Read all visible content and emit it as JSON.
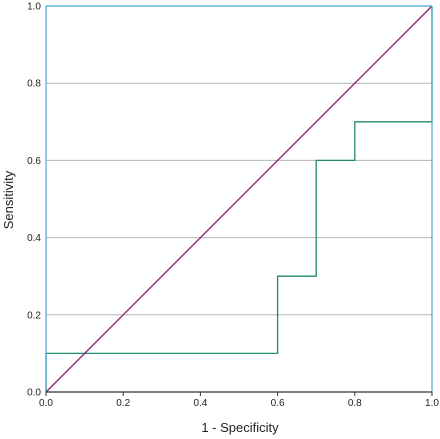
{
  "chart_data": {
    "type": "line",
    "title": "",
    "xlabel": "1 - Specificity",
    "ylabel": "Sensitivity",
    "xlim": [
      0,
      1
    ],
    "ylim": [
      0,
      1
    ],
    "x_ticks": [
      {
        "value": 0.0,
        "label": "0.0"
      },
      {
        "value": 0.2,
        "label": "0.2"
      },
      {
        "value": 0.4,
        "label": "0.4"
      },
      {
        "value": 0.6,
        "label": "0.6"
      },
      {
        "value": 0.8,
        "label": "0.8"
      },
      {
        "value": 1.0,
        "label": "1.0"
      }
    ],
    "y_ticks": [
      {
        "value": 0.0,
        "label": "0.0"
      },
      {
        "value": 0.2,
        "label": "0.2"
      },
      {
        "value": 0.4,
        "label": "0.4"
      },
      {
        "value": 0.6,
        "label": "0.6"
      },
      {
        "value": 0.8,
        "label": "0.8"
      },
      {
        "value": 1.0,
        "label": "1.0"
      }
    ],
    "grid": "horizontal",
    "series": [
      {
        "color": "#1f8a70",
        "x": [
          0.0,
          0.0,
          0.6,
          0.6,
          0.7,
          0.7,
          0.8,
          0.8,
          1.0,
          1.0
        ],
        "y": [
          0.0,
          0.1,
          0.1,
          0.3,
          0.3,
          0.6,
          0.6,
          0.7,
          0.7,
          1.0
        ]
      },
      {
        "color": "#8b1a6b",
        "x": [
          0.0,
          1.0
        ],
        "y": [
          0.0,
          1.0
        ]
      }
    ],
    "frame_color": "#4aa8d8",
    "grid_color": "#b5b5b5"
  }
}
